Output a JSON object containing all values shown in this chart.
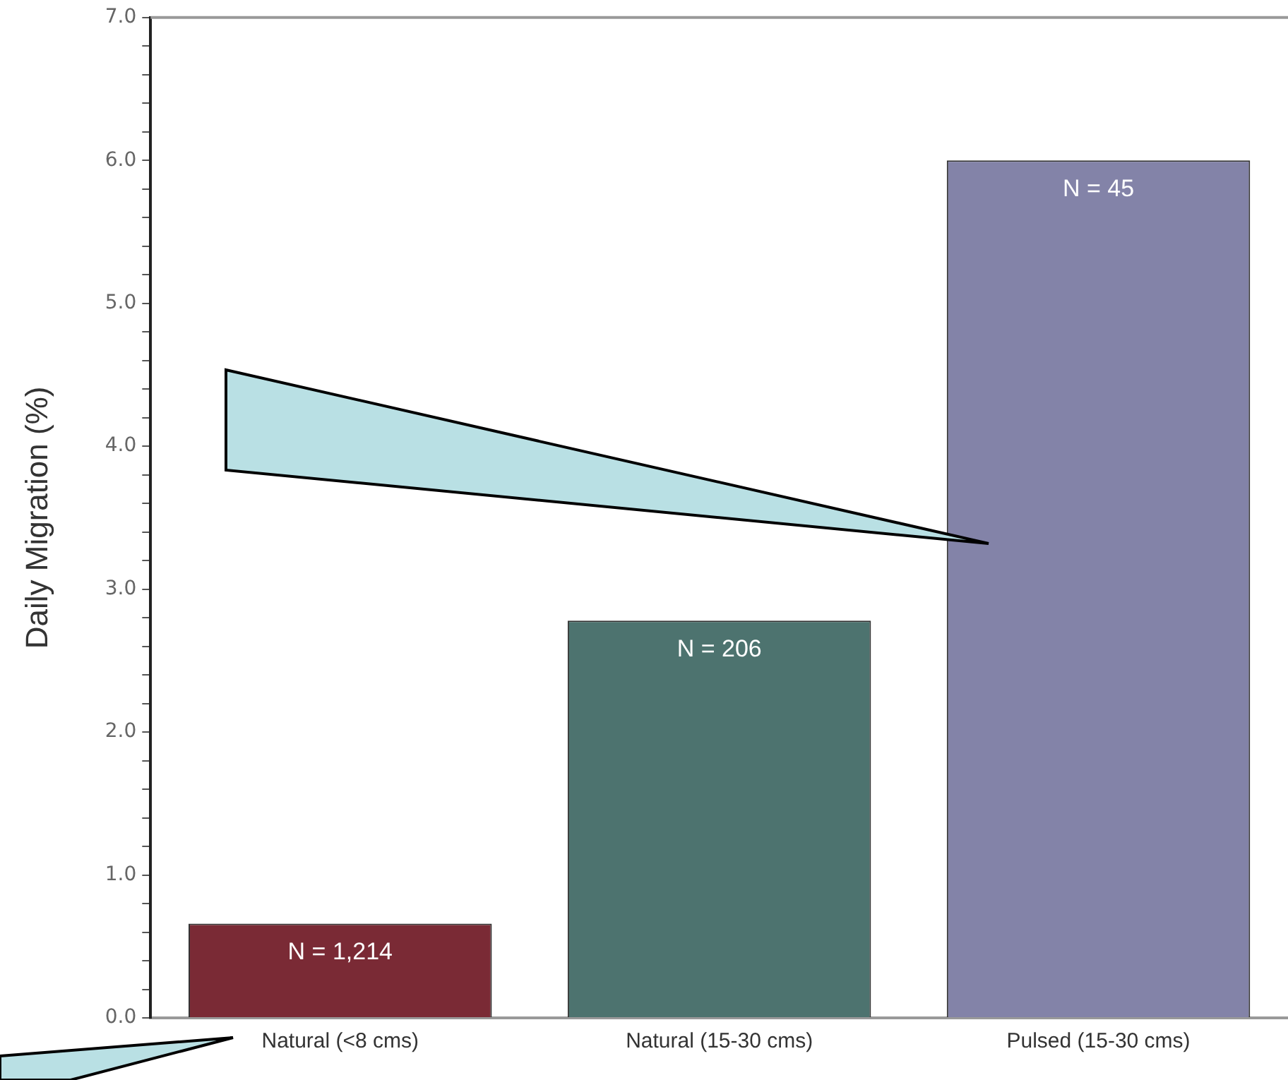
{
  "chart_data": {
    "type": "bar",
    "ylabel": "Daily Migration (%)",
    "categories": [
      "Natural (<8 cms)",
      "Natural (15-30 cms)",
      "Pulsed (15-30 cms)"
    ],
    "values": [
      0.66,
      2.78,
      6.0
    ],
    "colors": [
      "#7a2a35",
      "#4d736f",
      "#8383a8"
    ],
    "ylim": [
      0,
      7
    ],
    "yticks": [
      {
        "value": 0,
        "label": "0.0"
      },
      {
        "value": 0.2,
        "label": null
      },
      {
        "value": 0.4,
        "label": null
      },
      {
        "value": 0.6,
        "label": null
      },
      {
        "value": 0.8,
        "label": null
      },
      {
        "value": 1,
        "label": "1.0"
      },
      {
        "value": 1.2,
        "label": null
      },
      {
        "value": 1.4,
        "label": null
      },
      {
        "value": 1.6,
        "label": null
      },
      {
        "value": 1.8,
        "label": null
      },
      {
        "value": 2,
        "label": "2.0"
      },
      {
        "value": 2.2,
        "label": null
      },
      {
        "value": 2.4,
        "label": null
      },
      {
        "value": 2.6,
        "label": null
      },
      {
        "value": 2.8,
        "label": null
      },
      {
        "value": 3,
        "label": "3.0"
      },
      {
        "value": 3.2,
        "label": null
      },
      {
        "value": 3.4,
        "label": null
      },
      {
        "value": 3.6,
        "label": null
      },
      {
        "value": 3.8,
        "label": null
      },
      {
        "value": 4,
        "label": "4.0"
      },
      {
        "value": 4.2,
        "label": null
      },
      {
        "value": 4.4,
        "label": null
      },
      {
        "value": 4.6,
        "label": null
      },
      {
        "value": 4.8,
        "label": null
      },
      {
        "value": 5,
        "label": "5.0"
      },
      {
        "value": 5.2,
        "label": null
      },
      {
        "value": 5.4,
        "label": null
      },
      {
        "value": 5.6,
        "label": null
      },
      {
        "value": 5.8,
        "label": null
      },
      {
        "value": 6,
        "label": "6.0"
      },
      {
        "value": 6.2,
        "label": null
      },
      {
        "value": 6.4,
        "label": null
      },
      {
        "value": 6.6,
        "label": null
      },
      {
        "value": 6.8,
        "label": null
      },
      {
        "value": 7,
        "label": "7.0"
      }
    ],
    "grid": false,
    "legend": false,
    "annotations": [
      {
        "text": "N = 1,214",
        "x": "Natural (<8 cms)",
        "y": 0.66
      },
      {
        "text": "N = 206",
        "x": "Natural (15-30 cms)",
        "y": 2.78
      },
      {
        "text": "N = 45",
        "x": "Pulsed (15-30 cms)",
        "y": 6.0
      }
    ]
  }
}
